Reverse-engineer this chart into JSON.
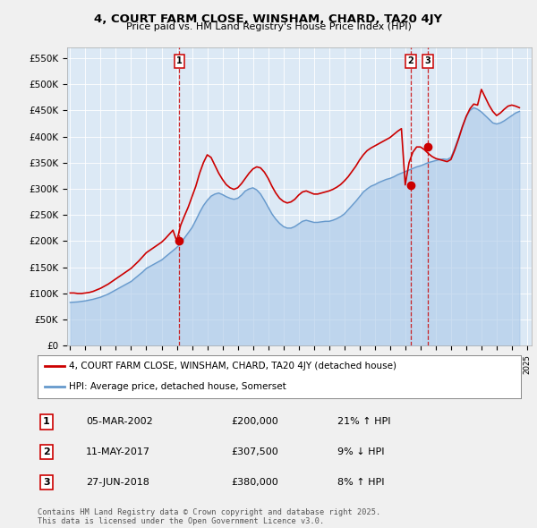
{
  "title": "4, COURT FARM CLOSE, WINSHAM, CHARD, TA20 4JY",
  "subtitle": "Price paid vs. HM Land Registry's House Price Index (HPI)",
  "ylabel_ticks": [
    "£0",
    "£50K",
    "£100K",
    "£150K",
    "£200K",
    "£250K",
    "£300K",
    "£350K",
    "£400K",
    "£450K",
    "£500K",
    "£550K"
  ],
  "ytick_values": [
    0,
    50000,
    100000,
    150000,
    200000,
    250000,
    300000,
    350000,
    400000,
    450000,
    500000,
    550000
  ],
  "ylim": [
    0,
    570000
  ],
  "xlim_start": 1994.8,
  "xlim_end": 2025.3,
  "background_color": "#f0f0f0",
  "plot_bg_color": "#dce9f5",
  "red_line_color": "#cc0000",
  "blue_line_color": "#6699cc",
  "blue_fill_color": "#aac8e8",
  "grid_color": "#ffffff",
  "sale_points": [
    {
      "year": 2002.17,
      "price": 200000,
      "label": "1"
    },
    {
      "year": 2017.36,
      "price": 307500,
      "label": "2"
    },
    {
      "year": 2018.49,
      "price": 380000,
      "label": "3"
    }
  ],
  "vline_color": "#cc0000",
  "legend_entries": [
    "4, COURT FARM CLOSE, WINSHAM, CHARD, TA20 4JY (detached house)",
    "HPI: Average price, detached house, Somerset"
  ],
  "table_data": [
    {
      "num": "1",
      "date": "05-MAR-2002",
      "price": "£200,000",
      "hpi": "21% ↑ HPI"
    },
    {
      "num": "2",
      "date": "11-MAY-2017",
      "price": "£307,500",
      "hpi": "9% ↓ HPI"
    },
    {
      "num": "3",
      "date": "27-JUN-2018",
      "price": "£380,000",
      "hpi": "8% ↑ HPI"
    }
  ],
  "footer": "Contains HM Land Registry data © Crown copyright and database right 2025.\nThis data is licensed under the Open Government Licence v3.0.",
  "hpi_data_x": [
    1995.0,
    1995.25,
    1995.5,
    1995.75,
    1996.0,
    1996.25,
    1996.5,
    1996.75,
    1997.0,
    1997.25,
    1997.5,
    1997.75,
    1998.0,
    1998.25,
    1998.5,
    1998.75,
    1999.0,
    1999.25,
    1999.5,
    1999.75,
    2000.0,
    2000.25,
    2000.5,
    2000.75,
    2001.0,
    2001.25,
    2001.5,
    2001.75,
    2002.0,
    2002.25,
    2002.5,
    2002.75,
    2003.0,
    2003.25,
    2003.5,
    2003.75,
    2004.0,
    2004.25,
    2004.5,
    2004.75,
    2005.0,
    2005.25,
    2005.5,
    2005.75,
    2006.0,
    2006.25,
    2006.5,
    2006.75,
    2007.0,
    2007.25,
    2007.5,
    2007.75,
    2008.0,
    2008.25,
    2008.5,
    2008.75,
    2009.0,
    2009.25,
    2009.5,
    2009.75,
    2010.0,
    2010.25,
    2010.5,
    2010.75,
    2011.0,
    2011.25,
    2011.5,
    2011.75,
    2012.0,
    2012.25,
    2012.5,
    2012.75,
    2013.0,
    2013.25,
    2013.5,
    2013.75,
    2014.0,
    2014.25,
    2014.5,
    2014.75,
    2015.0,
    2015.25,
    2015.5,
    2015.75,
    2016.0,
    2016.25,
    2016.5,
    2016.75,
    2017.0,
    2017.25,
    2017.5,
    2017.75,
    2018.0,
    2018.25,
    2018.5,
    2018.75,
    2019.0,
    2019.25,
    2019.5,
    2019.75,
    2020.0,
    2020.25,
    2020.5,
    2020.75,
    2021.0,
    2021.25,
    2021.5,
    2021.75,
    2022.0,
    2022.25,
    2022.5,
    2022.75,
    2023.0,
    2023.25,
    2023.5,
    2023.75,
    2024.0,
    2024.25,
    2024.5
  ],
  "hpi_data_y": [
    83000,
    83500,
    84000,
    85000,
    86000,
    87500,
    89000,
    91000,
    93000,
    96000,
    99000,
    103000,
    107000,
    111000,
    115000,
    119000,
    123000,
    129000,
    135000,
    141000,
    148000,
    152000,
    156000,
    160000,
    164000,
    170000,
    176000,
    182000,
    188000,
    196000,
    206000,
    216000,
    226000,
    240000,
    255000,
    268000,
    278000,
    286000,
    290000,
    292000,
    289000,
    285000,
    282000,
    280000,
    282000,
    288000,
    296000,
    300000,
    302000,
    298000,
    290000,
    278000,
    265000,
    252000,
    242000,
    234000,
    228000,
    225000,
    225000,
    228000,
    233000,
    238000,
    240000,
    238000,
    236000,
    236000,
    237000,
    238000,
    238000,
    240000,
    243000,
    247000,
    252000,
    260000,
    268000,
    276000,
    285000,
    294000,
    300000,
    305000,
    308000,
    312000,
    315000,
    318000,
    320000,
    323000,
    327000,
    330000,
    333000,
    336000,
    339000,
    342000,
    344000,
    347000,
    350000,
    352000,
    354000,
    356000,
    357000,
    356000,
    360000,
    378000,
    398000,
    420000,
    438000,
    450000,
    455000,
    452000,
    447000,
    440000,
    433000,
    426000,
    424000,
    426000,
    430000,
    435000,
    440000,
    445000,
    448000
  ],
  "red_data_x": [
    1995.0,
    1995.25,
    1995.5,
    1995.75,
    1996.0,
    1996.25,
    1996.5,
    1996.75,
    1997.0,
    1997.25,
    1997.5,
    1997.75,
    1998.0,
    1998.25,
    1998.5,
    1998.75,
    1999.0,
    1999.25,
    1999.5,
    1999.75,
    2000.0,
    2000.25,
    2000.5,
    2000.75,
    2001.0,
    2001.25,
    2001.5,
    2001.75,
    2002.0,
    2002.25,
    2002.5,
    2002.75,
    2003.0,
    2003.25,
    2003.5,
    2003.75,
    2004.0,
    2004.25,
    2004.5,
    2004.75,
    2005.0,
    2005.25,
    2005.5,
    2005.75,
    2006.0,
    2006.25,
    2006.5,
    2006.75,
    2007.0,
    2007.25,
    2007.5,
    2007.75,
    2008.0,
    2008.25,
    2008.5,
    2008.75,
    2009.0,
    2009.25,
    2009.5,
    2009.75,
    2010.0,
    2010.25,
    2010.5,
    2010.75,
    2011.0,
    2011.25,
    2011.5,
    2011.75,
    2012.0,
    2012.25,
    2012.5,
    2012.75,
    2013.0,
    2013.25,
    2013.5,
    2013.75,
    2014.0,
    2014.25,
    2014.5,
    2014.75,
    2015.0,
    2015.25,
    2015.5,
    2015.75,
    2016.0,
    2016.25,
    2016.5,
    2016.75,
    2017.0,
    2017.25,
    2017.5,
    2017.75,
    2018.0,
    2018.25,
    2018.5,
    2018.75,
    2019.0,
    2019.25,
    2019.5,
    2019.75,
    2020.0,
    2020.25,
    2020.5,
    2020.75,
    2021.0,
    2021.25,
    2021.5,
    2021.75,
    2022.0,
    2022.25,
    2022.5,
    2022.75,
    2023.0,
    2023.25,
    2023.5,
    2023.75,
    2024.0,
    2024.25,
    2024.5
  ],
  "red_data_y": [
    101000,
    101000,
    100000,
    100000,
    101000,
    102000,
    104000,
    107000,
    110000,
    114000,
    118000,
    123000,
    128000,
    133000,
    138000,
    143000,
    148000,
    155000,
    162000,
    170000,
    178000,
    183000,
    188000,
    193000,
    198000,
    205000,
    213000,
    221000,
    200000,
    230000,
    248000,
    265000,
    285000,
    305000,
    330000,
    350000,
    365000,
    360000,
    345000,
    330000,
    318000,
    308000,
    302000,
    299000,
    302000,
    310000,
    320000,
    330000,
    338000,
    342000,
    340000,
    332000,
    320000,
    305000,
    292000,
    282000,
    276000,
    273000,
    275000,
    280000,
    288000,
    294000,
    296000,
    293000,
    290000,
    290000,
    292000,
    294000,
    296000,
    299000,
    303000,
    308000,
    315000,
    323000,
    333000,
    343000,
    355000,
    365000,
    373000,
    378000,
    382000,
    386000,
    390000,
    394000,
    398000,
    404000,
    410000,
    415000,
    307500,
    350000,
    370000,
    380000,
    380000,
    375000,
    368000,
    362000,
    358000,
    356000,
    354000,
    352000,
    356000,
    374000,
    395000,
    418000,
    438000,
    453000,
    462000,
    460000,
    490000,
    475000,
    460000,
    448000,
    440000,
    445000,
    452000,
    458000,
    460000,
    458000,
    455000
  ]
}
